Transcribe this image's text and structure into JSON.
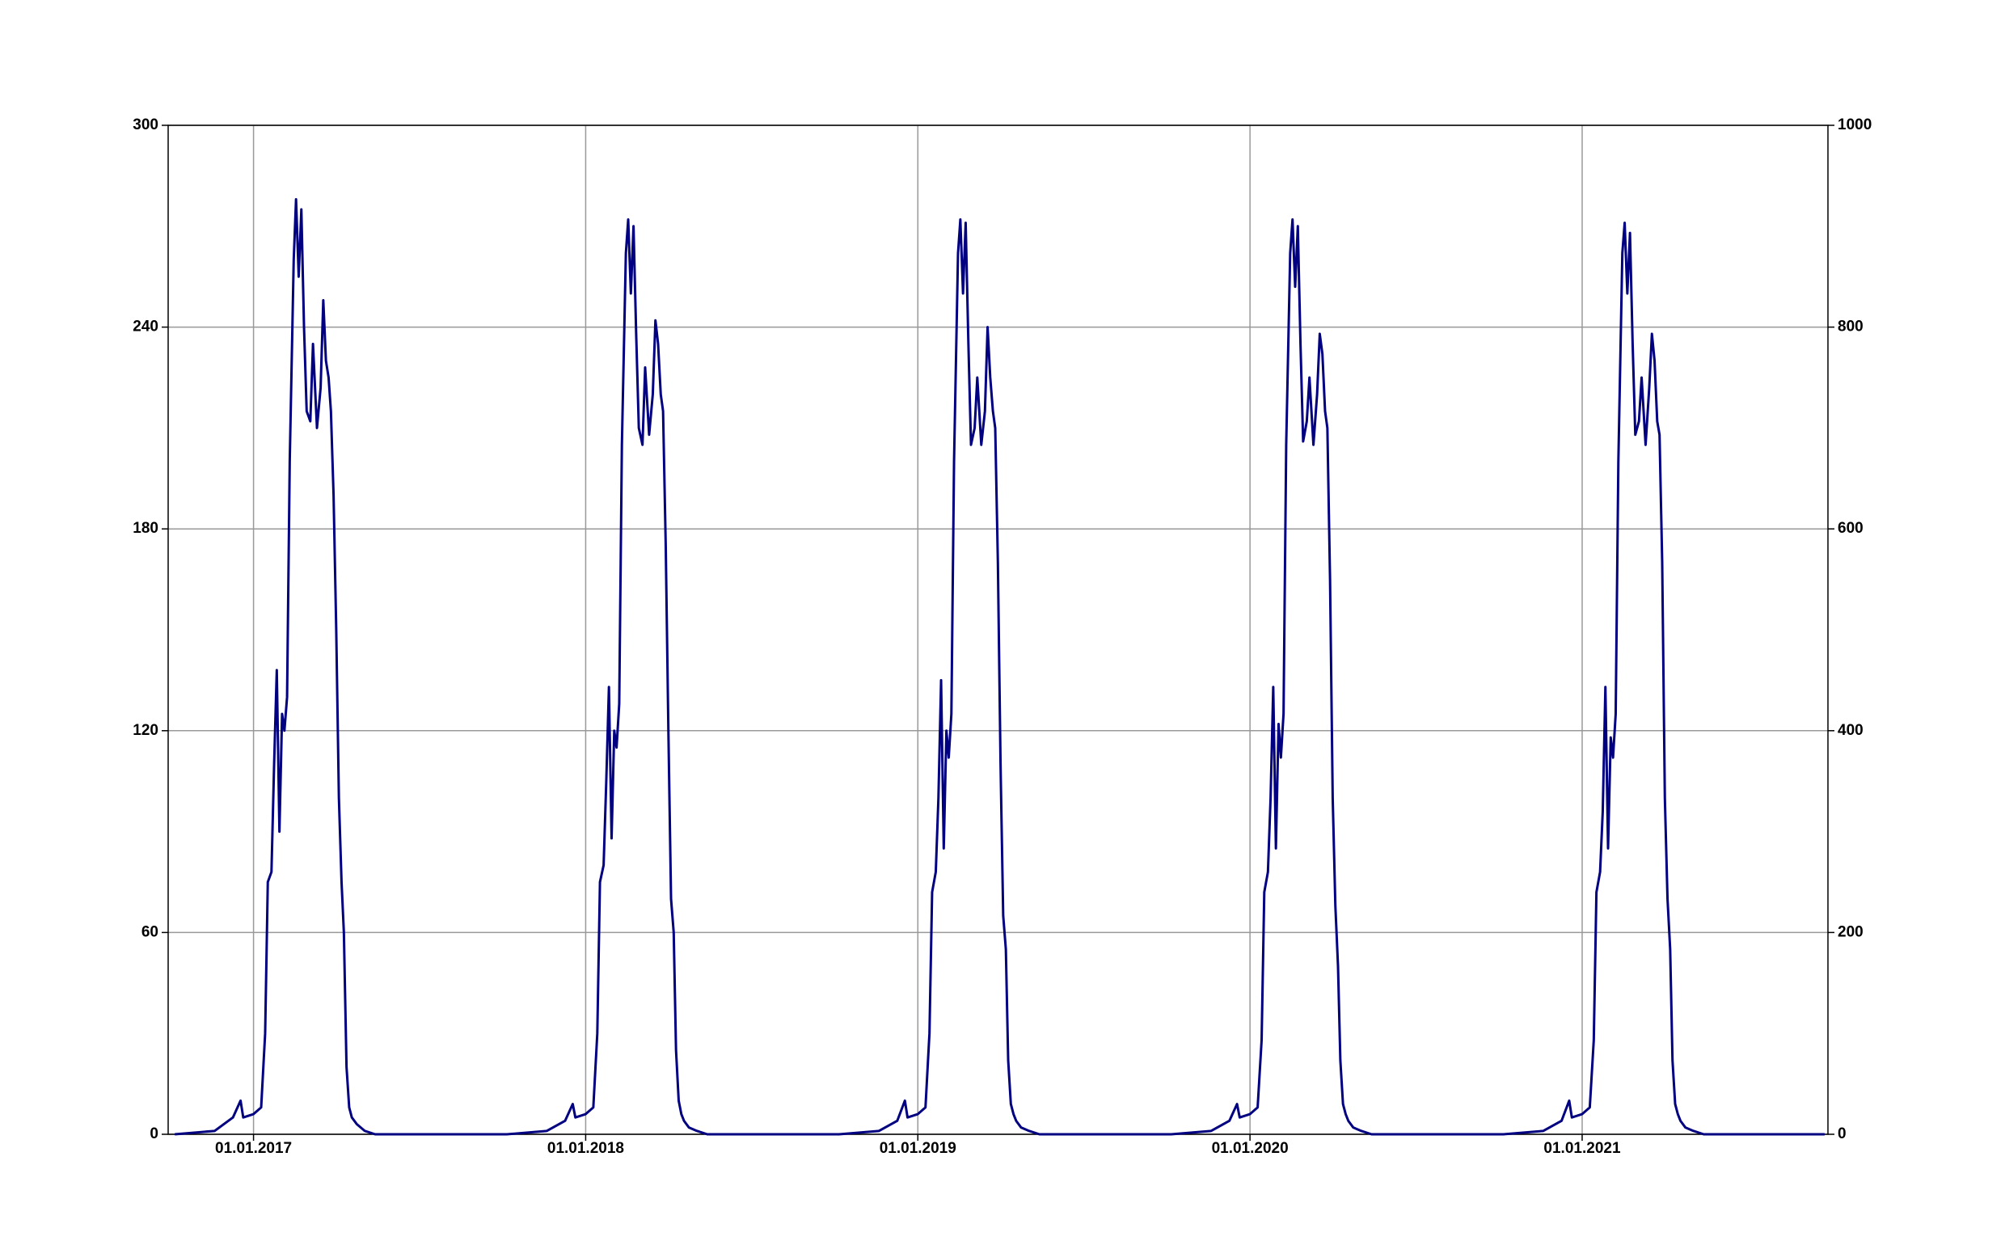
{
  "chart_data": {
    "type": "line",
    "x": [
      2016.763,
      2016.883,
      2016.938,
      2016.961,
      2016.969,
      2017,
      2017.023,
      2017.035,
      2017.043,
      2017.054,
      2017.062,
      2017.07,
      2017.078,
      2017.086,
      2017.093,
      2017.101,
      2017.109,
      2017.121,
      2017.128,
      2017.136,
      2017.144,
      2017.152,
      2017.16,
      2017.171,
      2017.179,
      2017.191,
      2017.202,
      2017.21,
      2017.218,
      2017.226,
      2017.233,
      2017.241,
      2017.249,
      2017.257,
      2017.265,
      2017.272,
      2017.28,
      2017.288,
      2017.296,
      2017.311,
      2017.335,
      2017.366,
      2017.763,
      2017.883,
      2017.938,
      2017.961,
      2017.969,
      2018,
      2018.023,
      2018.035,
      2018.043,
      2018.054,
      2018.062,
      2018.07,
      2018.078,
      2018.086,
      2018.093,
      2018.101,
      2018.109,
      2018.121,
      2018.128,
      2018.136,
      2018.144,
      2018.152,
      2018.16,
      2018.171,
      2018.179,
      2018.191,
      2018.202,
      2018.21,
      2018.218,
      2018.226,
      2018.233,
      2018.241,
      2018.249,
      2018.257,
      2018.265,
      2018.272,
      2018.28,
      2018.288,
      2018.296,
      2018.311,
      2018.335,
      2018.366,
      2018.763,
      2018.883,
      2018.938,
      2018.961,
      2018.969,
      2019,
      2019.023,
      2019.035,
      2019.043,
      2019.054,
      2019.062,
      2019.07,
      2019.078,
      2019.086,
      2019.093,
      2019.101,
      2019.109,
      2019.121,
      2019.128,
      2019.136,
      2019.144,
      2019.152,
      2019.16,
      2019.171,
      2019.179,
      2019.191,
      2019.202,
      2019.21,
      2019.218,
      2019.226,
      2019.233,
      2019.241,
      2019.249,
      2019.257,
      2019.265,
      2019.272,
      2019.28,
      2019.288,
      2019.296,
      2019.311,
      2019.335,
      2019.366,
      2019.763,
      2019.883,
      2019.938,
      2019.961,
      2019.969,
      2020,
      2020.023,
      2020.035,
      2020.043,
      2020.054,
      2020.062,
      2020.07,
      2020.078,
      2020.086,
      2020.093,
      2020.101,
      2020.109,
      2020.121,
      2020.128,
      2020.136,
      2020.144,
      2020.152,
      2020.16,
      2020.171,
      2020.179,
      2020.191,
      2020.202,
      2020.21,
      2020.218,
      2020.226,
      2020.233,
      2020.241,
      2020.249,
      2020.257,
      2020.265,
      2020.272,
      2020.28,
      2020.288,
      2020.296,
      2020.311,
      2020.335,
      2020.366,
      2020.763,
      2020.883,
      2020.938,
      2020.961,
      2020.969,
      2021,
      2021.023,
      2021.035,
      2021.043,
      2021.054,
      2021.062,
      2021.07,
      2021.078,
      2021.086,
      2021.093,
      2021.101,
      2021.109,
      2021.121,
      2021.128,
      2021.136,
      2021.144,
      2021.152,
      2021.16,
      2021.171,
      2021.179,
      2021.191,
      2021.202,
      2021.21,
      2021.218,
      2021.226,
      2021.233,
      2021.241,
      2021.249,
      2021.257,
      2021.265,
      2021.272,
      2021.28,
      2021.288,
      2021.296,
      2021.311,
      2021.335,
      2021.366,
      2021.73
    ],
    "series": [
      {
        "color": "#000080",
        "values": [
          0,
          1,
          5,
          10,
          5,
          6,
          8,
          30,
          75,
          78,
          110,
          138,
          90,
          125,
          120,
          130,
          200,
          260,
          278,
          255,
          275,
          240,
          215,
          212,
          235,
          210,
          222,
          248,
          230,
          225,
          215,
          190,
          150,
          100,
          75,
          60,
          20,
          8,
          5,
          3,
          1,
          0,
          0,
          1,
          4,
          9,
          5,
          6,
          8,
          30,
          75,
          80,
          105,
          133,
          88,
          120,
          115,
          128,
          205,
          262,
          272,
          250,
          270,
          238,
          210,
          205,
          228,
          208,
          220,
          242,
          235,
          220,
          215,
          175,
          120,
          70,
          60,
          25,
          10,
          6,
          4,
          2,
          1,
          0,
          0,
          1,
          4,
          10,
          5,
          6,
          8,
          30,
          72,
          78,
          100,
          135,
          85,
          120,
          112,
          125,
          200,
          262,
          272,
          250,
          271,
          236,
          205,
          210,
          225,
          205,
          215,
          240,
          225,
          215,
          210,
          170,
          110,
          65,
          55,
          22,
          9,
          6,
          4,
          2,
          1,
          0,
          0,
          1,
          4,
          9,
          5,
          6,
          8,
          28,
          72,
          78,
          100,
          133,
          85,
          122,
          112,
          125,
          205,
          262,
          272,
          252,
          270,
          235,
          206,
          212,
          225,
          205,
          220,
          238,
          232,
          215,
          210,
          165,
          100,
          68,
          50,
          22,
          9,
          6,
          4,
          2,
          1,
          0,
          0,
          1,
          4,
          10,
          5,
          6,
          8,
          28,
          72,
          78,
          96,
          133,
          85,
          118,
          112,
          125,
          200,
          262,
          271,
          250,
          268,
          235,
          208,
          212,
          225,
          205,
          222,
          238,
          230,
          212,
          208,
          170,
          100,
          70,
          55,
          22,
          9,
          6,
          4,
          2,
          1,
          0,
          0
        ]
      }
    ],
    "xlim": [
      2016.743,
      2021.74
    ],
    "xticks": [
      {
        "value": 2017,
        "label": "01.01.2017"
      },
      {
        "value": 2018,
        "label": "01.01.2018"
      },
      {
        "value": 2019,
        "label": "01.01.2019"
      },
      {
        "value": 2020,
        "label": "01.01.2020"
      },
      {
        "value": 2021,
        "label": "01.01.2021"
      }
    ],
    "ylim": [
      0,
      300
    ],
    "yticks": [
      0,
      60,
      120,
      180,
      240,
      300
    ],
    "y2lim": [
      0,
      1000
    ],
    "y2ticks": [
      0,
      200,
      400,
      600,
      800,
      1000
    ],
    "grid": true
  }
}
